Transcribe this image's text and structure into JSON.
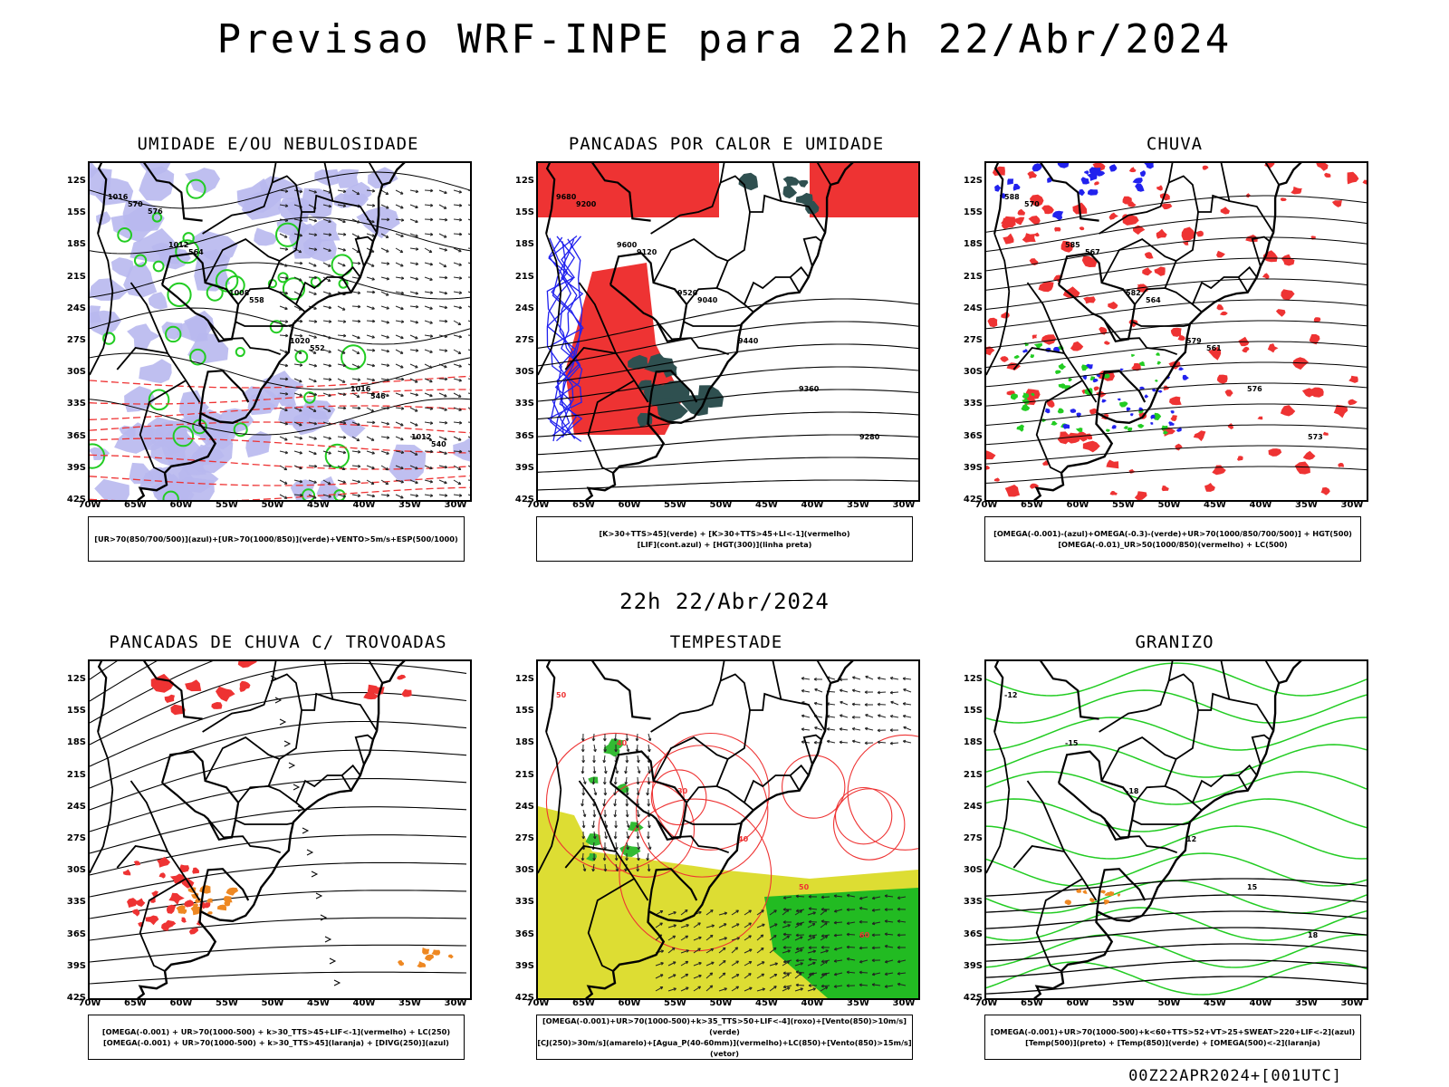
{
  "title": "Previsao WRF-INPE  para 22h 22/Abr/2024",
  "mid_date": "22h 22/Abr/2024",
  "footer": "00Z22APR2024+[001UTC]",
  "lat_labels": [
    "12S",
    "15S",
    "18S",
    "21S",
    "24S",
    "27S",
    "30S",
    "33S",
    "36S",
    "39S",
    "42S"
  ],
  "lon_labels": [
    "70W",
    "65W",
    "60W",
    "55W",
    "50W",
    "45W",
    "40W",
    "35W",
    "30W"
  ],
  "panels": [
    {
      "title": "UMIDADE E/OU NEBULOSIDADE",
      "legend": [
        "[UR>70(850/700/500)](azul)+[UR>70(1000/850)](verde)+VENTO>5m/s+ESP(500/1000)"
      ],
      "contour_labels": [
        "1016",
        "1012",
        "1008",
        "1020",
        "1016",
        "1012",
        "570",
        "564",
        "558",
        "552",
        "546",
        "540",
        "576"
      ]
    },
    {
      "title": "PANCADAS POR CALOR E UMIDADE",
      "legend": [
        "[K>30+TTS>45](verde) + [K>30+TTS>45+LI<-1](vermelho)",
        "[LIF](cont.azul) + [HGT(300)](linha preta)"
      ],
      "contour_labels": [
        "9680",
        "9600",
        "9520",
        "9440",
        "9360",
        "9280",
        "9200",
        "9120",
        "9040"
      ]
    },
    {
      "title": "CHUVA",
      "legend": [
        "[OMEGA(-0.001)-(azul)+OMEGA(-0.3)-(verde)+UR>70(1000/850/700/500)] + HGT(500)",
        "[OMEGA(-0.01)_UR>50(1000/850)(vermelho) + LC(500)"
      ],
      "contour_labels": [
        "588",
        "585",
        "582",
        "579",
        "576",
        "573",
        "570",
        "567",
        "564",
        "561"
      ]
    },
    {
      "title": "PANCADAS DE CHUVA C/ TROVOADAS",
      "legend": [
        "[OMEGA(-0.001) + UR>70(1000-500) + k>30_TTS>45+LIF<-1](vermelho) + LC(250)",
        "[OMEGA(-0.001) + UR>70(1000-500) + k>30_TTS>45](laranja) + [DIVG(250)](azul)"
      ],
      "contour_labels": []
    },
    {
      "title": "TEMPESTADE",
      "legend": [
        "[OMEGA(-0.001)+UR>70(1000-500)+k>35_TTS>50+LIF<-4](roxo)+[Vento(850)>10m/s](verde)",
        "[CJ(250)>30m/s](amarelo)+[Agua_P(40-60mm)](vermelho)+LC(850)+[Vento(850)>15m/s](vetor)"
      ],
      "contour_labels": [
        "50",
        "40",
        "30",
        "40",
        "50",
        "60"
      ]
    },
    {
      "title": "GRANIZO",
      "legend": [
        "[OMEGA(-0.001)+UR>70(1000-500)+k<60+TTS>52+VT>25+SWEAT>220+LIF<-2](azul)",
        "[Temp(500)](preto) + [Temp(850)](verde) + [OMEGA(500)<-2](laranja)"
      ],
      "contour_labels": [
        "-12",
        "-15",
        "-18",
        "12",
        "15",
        "18"
      ]
    }
  ],
  "colors": {
    "azul": "#2222ee",
    "verde": "#22cc22",
    "vermelho": "#ee3333",
    "laranja": "#ee8822",
    "amarelo": "#dddd33",
    "lavanda": "#b8b8ee",
    "verde_escuro": "#2f5050"
  }
}
